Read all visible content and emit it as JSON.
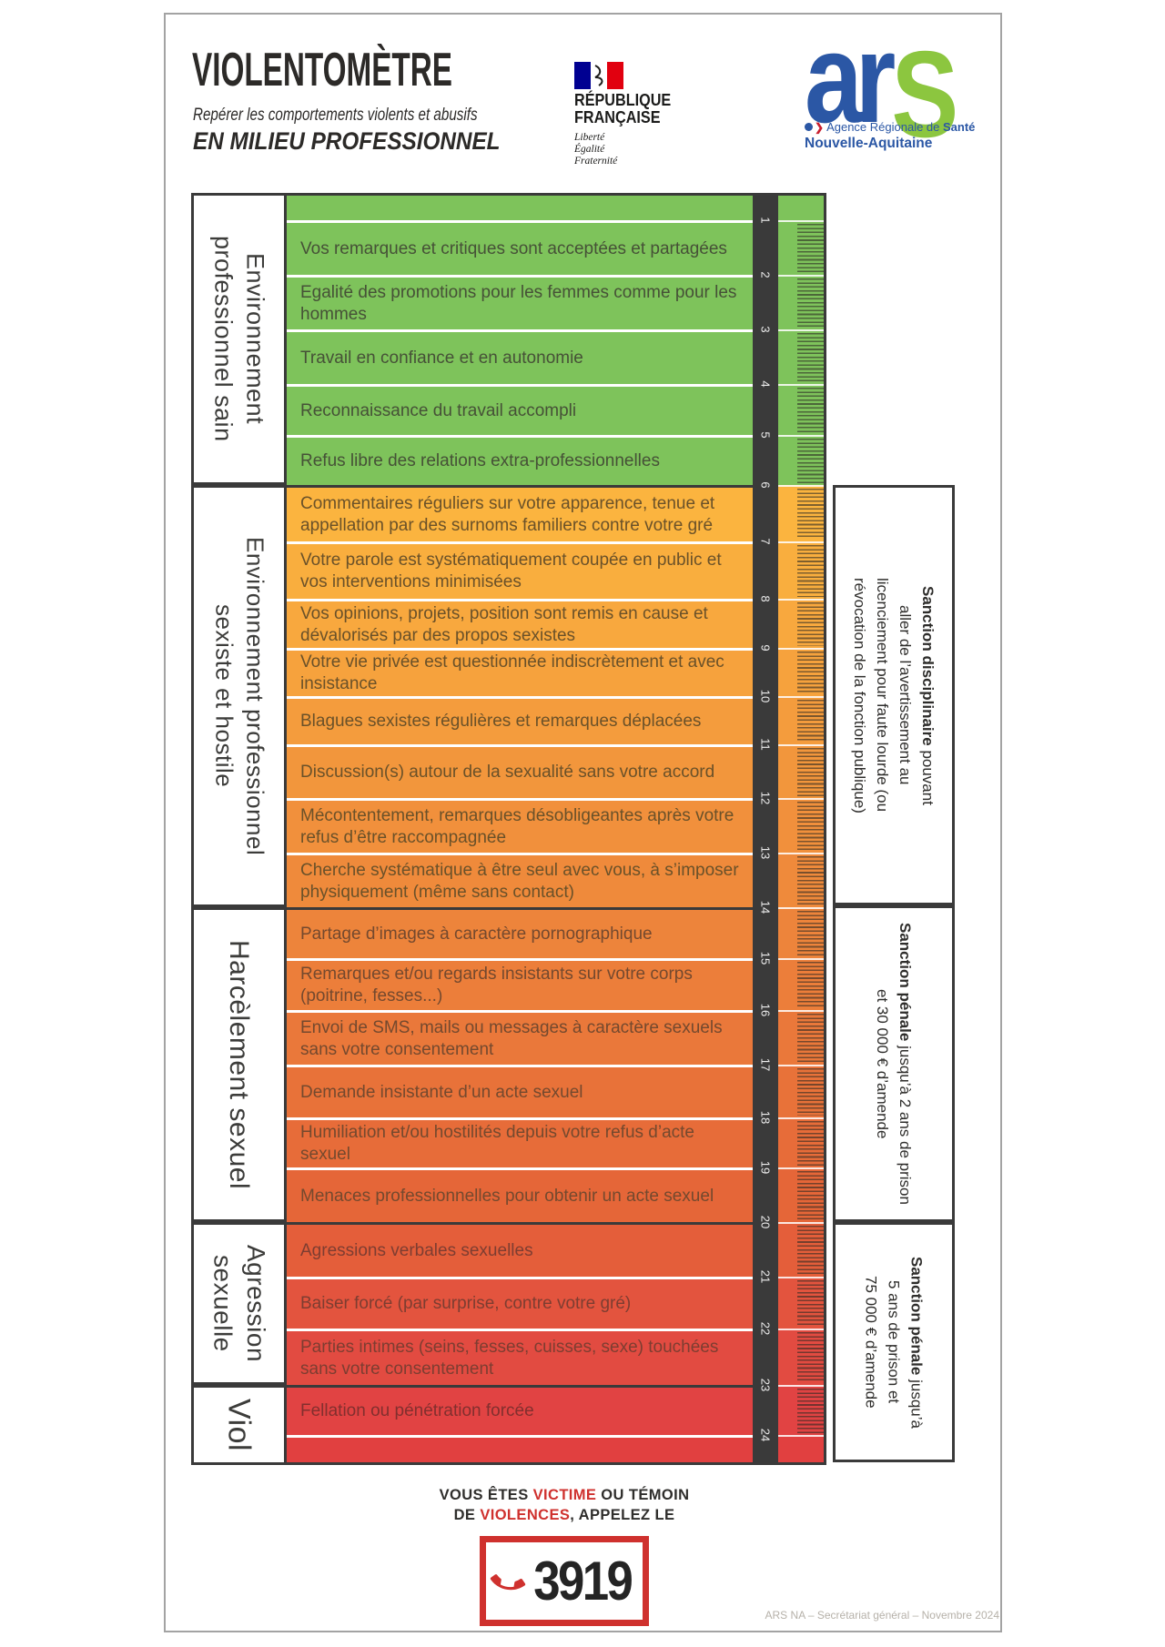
{
  "header": {
    "title": "VIOLENTOMÈTRE",
    "subtitle": "Repérer les comportements violents et abusifs",
    "context": "EN MILIEU PROFESSIONNEL",
    "gov_logo": {
      "line1": "RÉPUBLIQUE",
      "line2": "FRANÇAISE",
      "motto": [
        "Liberté",
        "Égalité",
        "Fraternité"
      ]
    },
    "ars_logo": {
      "ar": "ar",
      "s": "S",
      "agency_prefix": "Agence Régionale de ",
      "agency_bold": "Santé",
      "region": "Nouvelle-Aquitaine"
    }
  },
  "colors": {
    "accent_red": "#cf312e",
    "scale_green": "#7ec35b",
    "strip_dark": "#3a3a3a",
    "ars_blue": "#2b57a5",
    "ars_green": "#8cc63f",
    "gov_blue": "#000091",
    "gov_red": "#e1000f"
  },
  "scale": {
    "sections": [
      {
        "label": "Environnement professionnel sain",
        "lines": [
          "Environnement",
          "professionnel sain"
        ]
      },
      {
        "label": "Environnement professionnel sexiste et hostile",
        "lines": [
          "Environnement professionnel",
          "sexiste et hostile"
        ]
      },
      {
        "label": "Harcèlement sexuel",
        "lines": [
          "Harcèlement sexuel"
        ]
      },
      {
        "label": "Agression sexuelle",
        "lines": [
          "Agression",
          "sexuelle"
        ]
      },
      {
        "label": "Viol",
        "lines": [
          "Viol"
        ]
      }
    ],
    "rows": [
      {
        "num": null,
        "text": "",
        "color": "#7ec35b",
        "text_color": "#465137",
        "section_start": false
      },
      {
        "num": "1",
        "text": "Vos remarques et critiques sont acceptées et partagées",
        "color": "#7ec35b",
        "text_color": "#465137",
        "section_start": false
      },
      {
        "num": "2",
        "text": "Egalité des promotions pour les femmes comme pour les hommes",
        "color": "#7ec35b",
        "text_color": "#465137",
        "section_start": false
      },
      {
        "num": "3",
        "text": "Travail en confiance et en autonomie",
        "color": "#7ec35b",
        "text_color": "#465137",
        "section_start": false
      },
      {
        "num": "4",
        "text": "Reconnaissance du travail accompli",
        "color": "#7ec35b",
        "text_color": "#465137",
        "section_start": false
      },
      {
        "num": "5",
        "text": "Refus libre des relations extra-professionnelles",
        "color": "#7ec35b",
        "text_color": "#465137",
        "section_start": false
      },
      {
        "num": "6",
        "text": "Commentaires réguliers sur votre apparence, tenue et appellation par des surnoms familiers contre votre gré",
        "color": "#fbb43f",
        "text_color": "#6a5129",
        "section_start": true
      },
      {
        "num": "7",
        "text": "Votre parole est systématiquement coupée en public et vos interventions minimisées",
        "color": "#f9ae3e",
        "text_color": "#6a5129",
        "section_start": false
      },
      {
        "num": "8",
        "text": "Vos opinions, projets, position sont remis en cause et dévalorisés par des propos sexistes",
        "color": "#f8a83e",
        "text_color": "#6a5129",
        "section_start": false
      },
      {
        "num": "9",
        "text": "Votre vie privée est questionnée indiscrètement et avec insistance",
        "color": "#f6a23d",
        "text_color": "#6a5129",
        "section_start": false
      },
      {
        "num": "10",
        "text": "Blagues sexistes régulières et remarques déplacées",
        "color": "#f49c3d",
        "text_color": "#6a5129",
        "section_start": false
      },
      {
        "num": "11",
        "text": "Discussion(s) autour de la sexualité sans votre accord",
        "color": "#f2963c",
        "text_color": "#6a5129",
        "section_start": false
      },
      {
        "num": "12",
        "text": "Mécontentement, remarques désobligeantes après votre refus d’être raccompagnée",
        "color": "#f1903c",
        "text_color": "#6a5129",
        "section_start": false
      },
      {
        "num": "13",
        "text": "Cherche systématique à être seul avec vous, à s’imposer physiquement (même sans contact)",
        "color": "#ef8a3b",
        "text_color": "#6a5129",
        "section_start": false
      },
      {
        "num": "14",
        "text": "Partage d’images à caractère pornographique",
        "color": "#ed843b",
        "text_color": "#74492e",
        "section_start": true
      },
      {
        "num": "15",
        "text": "Remarques et/ou regards insistants sur votre corps (poitrine, fesses...)",
        "color": "#ec7e3a",
        "text_color": "#74492e",
        "section_start": false
      },
      {
        "num": "16",
        "text": "Envoi de SMS, mails ou messages à caractère sexuels sans votre consentement",
        "color": "#ea783a",
        "text_color": "#74492e",
        "section_start": false
      },
      {
        "num": "17",
        "text": "Demande insistante d’un acte sexuel",
        "color": "#e87239",
        "text_color": "#74492e",
        "section_start": false
      },
      {
        "num": "18",
        "text": "Humiliation et/ou hostilités depuis votre refus d’acte sexuel",
        "color": "#e76c39",
        "text_color": "#74492e",
        "section_start": false
      },
      {
        "num": "19",
        "text": "Menaces professionnelles pour obtenir un acte sexuel",
        "color": "#e56638",
        "text_color": "#74492e",
        "section_start": false
      },
      {
        "num": "20",
        "text": "Agressions verbales sexuelles",
        "color": "#e45e3a",
        "text_color": "#7d3d31",
        "section_start": true
      },
      {
        "num": "21",
        "text": "Baiser forcé (par surprise, contre votre gré)",
        "color": "#e3543e",
        "text_color": "#7d3d31",
        "section_start": false
      },
      {
        "num": "22",
        "text": "Parties intimes (seins, fesses, cuisses, sexe) touchées sans votre consentement",
        "color": "#e24b41",
        "text_color": "#7d3d31",
        "section_start": false
      },
      {
        "num": "23",
        "text": "Fellation ou pénétration forcée",
        "color": "#e14343",
        "text_color": "#822f2e",
        "section_start": true
      },
      {
        "num": "24",
        "text": "",
        "color": "#e14040",
        "text_color": "#822f2e",
        "section_start": false
      }
    ]
  },
  "sanctions": [
    {
      "lines": [
        [
          {
            "t": "Sanction disciplinaire",
            "bold": true
          },
          {
            "t": " pouvant",
            "bold": false
          }
        ],
        [
          {
            "t": "aller de l’avertissement au",
            "bold": false
          }
        ],
        [
          {
            "t": "licenciement pour faute lourde (ou",
            "bold": false
          }
        ],
        [
          {
            "t": "révocation de la fonction publique)",
            "bold": false
          }
        ]
      ]
    },
    {
      "lines": [
        [
          {
            "t": "Sanction pénale",
            "bold": true
          },
          {
            "t": " jusqu’à 2 ans de prison",
            "bold": false
          }
        ],
        [
          {
            "t": "et 30 000 € d’amende",
            "bold": false
          }
        ]
      ]
    },
    {
      "lines": [
        [
          {
            "t": "Sanction pénale",
            "bold": true
          },
          {
            "t": " jusqu’à",
            "bold": false
          }
        ],
        [
          {
            "t": "5 ans de prison et",
            "bold": false
          }
        ],
        [
          {
            "t": "75 000 € d’amende",
            "bold": false
          }
        ]
      ]
    }
  ],
  "footer": {
    "message_line1": [
      {
        "t": "VOUS ÊTES ",
        "red": false
      },
      {
        "t": "VICTIME",
        "red": true
      },
      {
        "t": " OU TÉMOIN",
        "red": false
      }
    ],
    "message_line2": [
      {
        "t": "DE ",
        "red": false
      },
      {
        "t": "VIOLENCES",
        "red": true
      },
      {
        "t": ", APPELEZ LE",
        "red": false
      }
    ],
    "phone_number": "3919",
    "credit": "ARS NA – Secrétariat général – Novembre 2024"
  }
}
